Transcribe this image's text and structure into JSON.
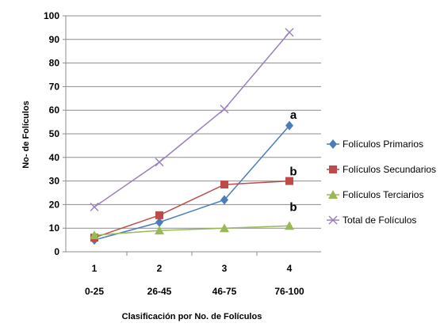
{
  "chart_data": {
    "type": "line",
    "title": "",
    "xlabel": "Clasificación  por No. de Folículos",
    "ylabel": "No- de Folículos",
    "x": [
      1,
      2,
      3,
      4
    ],
    "range_labels": [
      "0-25",
      "26-45",
      "46-75",
      "76-100"
    ],
    "ylim": [
      0,
      100
    ],
    "yticks": [
      0,
      10,
      20,
      30,
      40,
      50,
      60,
      70,
      80,
      90,
      100
    ],
    "grid": "horizontal",
    "legend": "right",
    "series": [
      {
        "name": "Folículos Primarios",
        "values": [
          5,
          12.5,
          22,
          53.5
        ],
        "color": "#4a7ebb",
        "marker": "diamond"
      },
      {
        "name": "Folículos Secundarios",
        "values": [
          6,
          15.5,
          28.5,
          30
        ],
        "color": "#be4b48",
        "marker": "square"
      },
      {
        "name": "Folículos Terciarios",
        "values": [
          7,
          9,
          10,
          11
        ],
        "color": "#98b954",
        "marker": "triangle"
      },
      {
        "name": "Total de Folículos",
        "values": [
          19,
          38,
          60.5,
          93
        ],
        "color": "#9a7fbb",
        "marker": "x"
      }
    ],
    "annotations": [
      {
        "text": "a",
        "x": 4,
        "y": 58
      },
      {
        "text": "b",
        "x": 4,
        "y": 34
      },
      {
        "text": "b",
        "x": 4,
        "y": 19
      }
    ]
  }
}
